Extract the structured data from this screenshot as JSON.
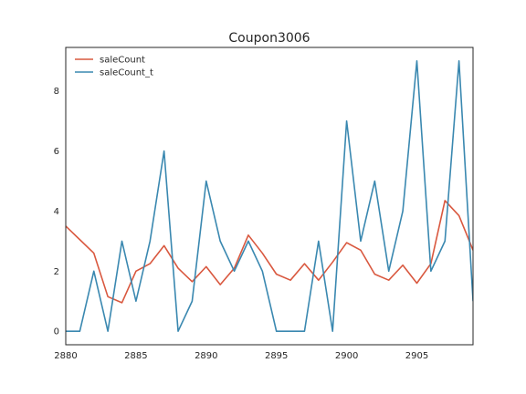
{
  "chart_data": {
    "type": "line",
    "title": "Coupon3006",
    "xlabel": "",
    "ylabel": "",
    "xlim": [
      2880,
      2909
    ],
    "ylim": [
      -0.45,
      9.45
    ],
    "xticks": [
      2880,
      2885,
      2890,
      2895,
      2900,
      2905
    ],
    "yticks": [
      0,
      2,
      4,
      6,
      8
    ],
    "grid": false,
    "legend_position": "top-left",
    "x": [
      2880,
      2881,
      2882,
      2883,
      2884,
      2885,
      2886,
      2887,
      2888,
      2889,
      2890,
      2891,
      2892,
      2893,
      2894,
      2895,
      2896,
      2897,
      2898,
      2899,
      2900,
      2901,
      2902,
      2903,
      2904,
      2905,
      2906,
      2907,
      2908,
      2909
    ],
    "series": [
      {
        "name": "saleCount",
        "color": "#d9583f",
        "values": [
          3.5,
          3.05,
          2.6,
          1.15,
          0.95,
          2.0,
          2.25,
          2.85,
          2.1,
          1.65,
          2.15,
          1.55,
          2.1,
          3.2,
          2.6,
          1.9,
          1.7,
          2.25,
          1.7,
          2.3,
          2.95,
          2.7,
          1.9,
          1.7,
          2.2,
          1.6,
          2.25,
          4.35,
          3.85,
          2.7
        ]
      },
      {
        "name": "saleCount_t",
        "color": "#3a88b0",
        "values": [
          0,
          0,
          2,
          0,
          3,
          1,
          3,
          6,
          0,
          1,
          5,
          3,
          2,
          3,
          2,
          0,
          0,
          0,
          3,
          0,
          7,
          3,
          5,
          2,
          4,
          9,
          2,
          3,
          9,
          1
        ]
      }
    ]
  }
}
